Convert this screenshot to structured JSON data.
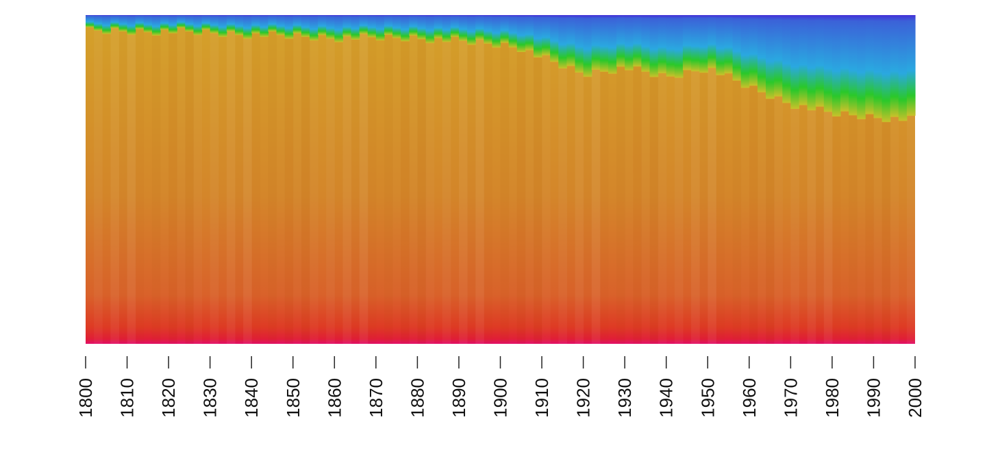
{
  "chart_data": {
    "type": "heatmap",
    "title": "",
    "xlabel": "",
    "ylabel": "",
    "x_ticks": [
      "1800",
      "1810",
      "1820",
      "1830",
      "1840",
      "1850",
      "1860",
      "1870",
      "1880",
      "1890",
      "1900",
      "1910",
      "1920",
      "1930",
      "1940",
      "1950",
      "1960",
      "1970",
      "1980",
      "1990",
      "2000"
    ],
    "xlim": [
      1800,
      2000
    ],
    "legend": "none",
    "grid": false,
    "palette": [
      "#e4105a",
      "#e22a22",
      "#d8702a",
      "#d49a2a",
      "#c9c12a",
      "#2ac82a",
      "#2aa8e0",
      "#3b62d8",
      "#4430d8"
    ],
    "series": [
      {
        "name": "",
        "x": [
          1800,
          1820,
          1840,
          1860,
          1880,
          1900,
          1905,
          1910,
          1920,
          1930,
          1940,
          1950,
          1960,
          1970,
          1980,
          1990,
          2000
        ],
        "values": [
          0.05,
          0.05,
          0.06,
          0.07,
          0.07,
          0.09,
          0.1,
          0.13,
          0.18,
          0.16,
          0.19,
          0.16,
          0.22,
          0.27,
          0.3,
          0.31,
          0.32
        ]
      }
    ]
  }
}
